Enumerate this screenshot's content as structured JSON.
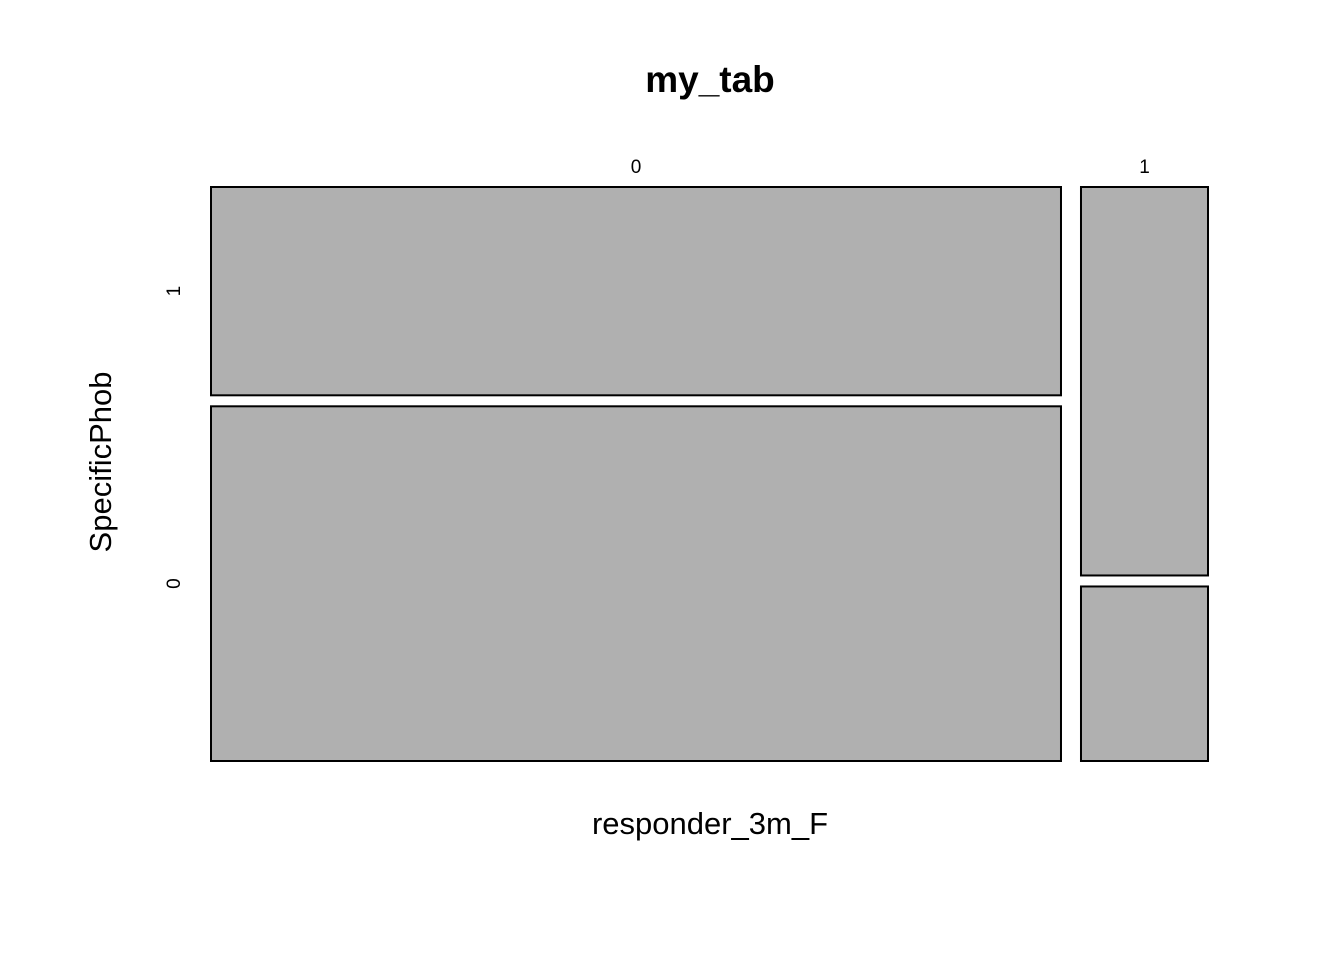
{
  "chart_data": {
    "type": "mosaic",
    "title": "my_tab",
    "xlabel": "responder_3m_F",
    "ylabel": "SpecificPhob",
    "x_categories": [
      "0",
      "1"
    ],
    "y_categories": [
      "0",
      "1"
    ],
    "x_proportions": [
      0.87,
      0.13
    ],
    "conditional_y_proportions": {
      "0": {
        "0": 0.63,
        "1": 0.37
      },
      "1": {
        "0": 0.31,
        "1": 0.69
      }
    },
    "tile_fill": "#b0b0b0",
    "tile_stroke": "#000000"
  }
}
